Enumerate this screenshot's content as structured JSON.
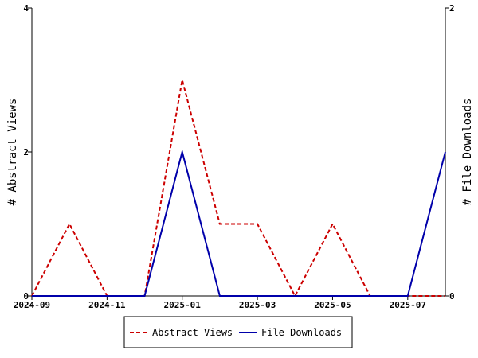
{
  "chart_data": {
    "type": "line",
    "title": "",
    "x": [
      "2024-09",
      "2024-10",
      "2024-11",
      "2024-12",
      "2025-01",
      "2025-02",
      "2025-03",
      "2025-04",
      "2025-05",
      "2025-06",
      "2025-07",
      "2025-08"
    ],
    "xticks": [
      "2024-09",
      "2024-11",
      "2025-01",
      "2025-03",
      "2025-05",
      "2025-07"
    ],
    "ylabel_left": "# Abstract Views",
    "ylabel_right": "# File Downloads",
    "ylim_left": [
      0,
      4
    ],
    "ylim_right": [
      0,
      2
    ],
    "yticks_left": [
      "0",
      "2",
      "4"
    ],
    "yticks_right": [
      "0",
      "2"
    ],
    "series": [
      {
        "name": "Abstract Views",
        "axis": "left",
        "color": "#cc0000",
        "dash": "dashed",
        "values": [
          0,
          1,
          0,
          0,
          3,
          1,
          1,
          0,
          1,
          0,
          0,
          0
        ]
      },
      {
        "name": "File Downloads",
        "axis": "right",
        "color": "#0000aa",
        "dash": "solid",
        "values": [
          0,
          0,
          0,
          0,
          1,
          0,
          0,
          0,
          0,
          0,
          0,
          1
        ]
      }
    ],
    "legend_position": "bottom-center",
    "grid": false
  }
}
